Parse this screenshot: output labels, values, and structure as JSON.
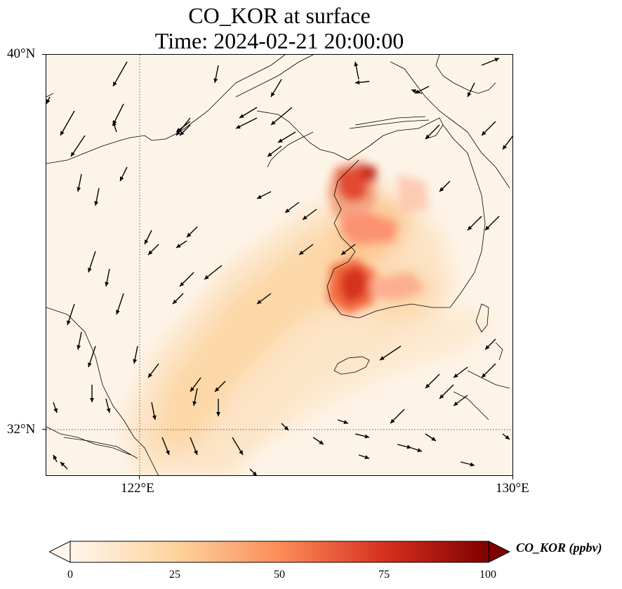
{
  "title_line1": "CO_KOR at surface",
  "title_line2": "Time: 2024-02-21 20:00:00",
  "lat_labels": {
    "north": "40°N",
    "south": "32°N"
  },
  "lon_labels": {
    "west": "122°E",
    "east": "130°E"
  },
  "colorbar": {
    "label": "CO_KOR (ppbv)",
    "ticks": [
      "0",
      "25",
      "50",
      "75",
      "100"
    ],
    "colors": [
      "#fff5eb",
      "#fdd49e",
      "#fc8d59",
      "#d7301f",
      "#7f0000"
    ]
  },
  "gridlines": {
    "style": "dotted",
    "lon": "122°E",
    "lat": "32°N"
  }
}
